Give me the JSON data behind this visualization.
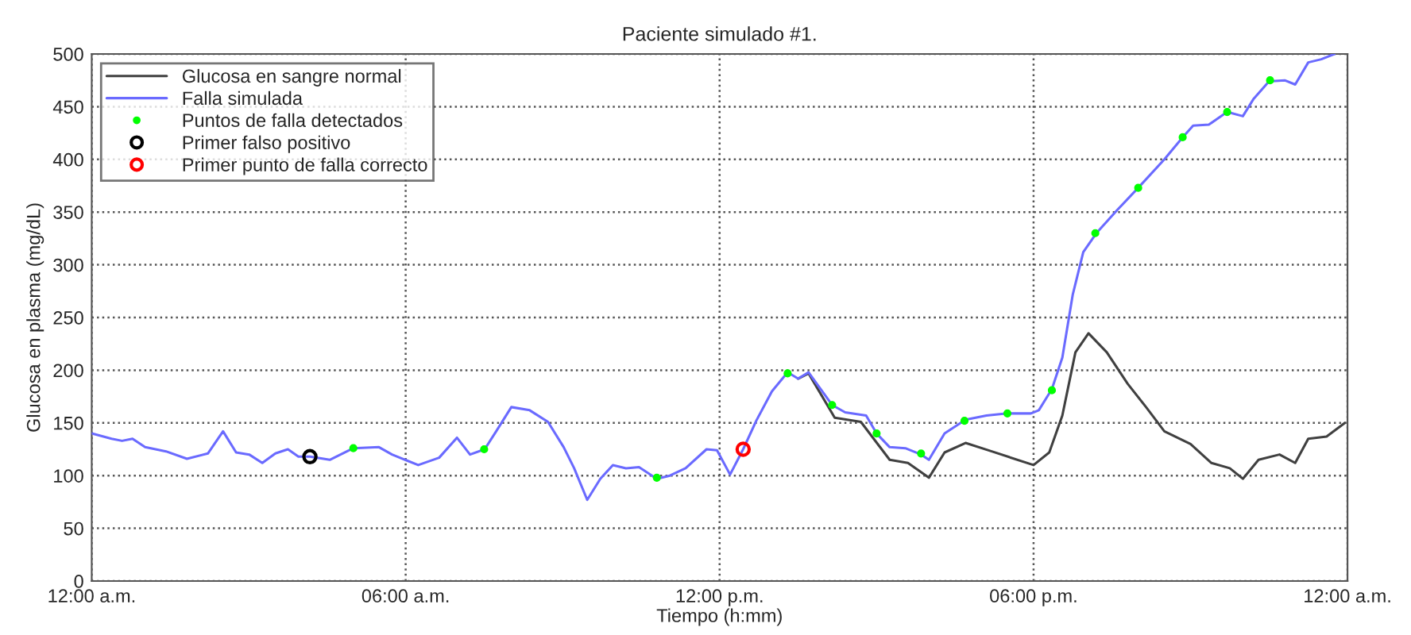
{
  "chart_data": {
    "type": "line",
    "title": "Paciente simulado #1.",
    "xlabel": "Tiempo (h:mm)",
    "ylabel": "Glucosa en plasma (mg/dL)",
    "xlim": [
      0,
      24
    ],
    "xticks": [
      {
        "value": 0,
        "label": "12:00 a.m."
      },
      {
        "value": 6,
        "label": "06:00 a.m."
      },
      {
        "value": 12,
        "label": "12:00 p.m."
      },
      {
        "value": 18,
        "label": "06:00 p.m."
      },
      {
        "value": 24,
        "label": "12:00 a.m."
      }
    ],
    "ylim": [
      0,
      500
    ],
    "yticks": [
      0,
      50,
      100,
      150,
      200,
      250,
      300,
      350,
      400,
      450,
      500
    ],
    "grid": true,
    "legend": "top left",
    "series": [
      {
        "name": "Glucosa en sangre normal",
        "color": "#404040",
        "x": [
          13.5,
          13.7,
          14.2,
          14.7,
          15.25,
          15.6,
          16.0,
          16.3,
          16.7,
          17.2,
          18.0,
          18.3,
          18.55,
          18.8,
          19.05,
          19.4,
          19.8,
          20.15,
          20.5,
          21.0,
          21.4,
          21.75,
          22.0,
          22.3,
          22.7,
          23.0,
          23.25,
          23.6,
          23.95
        ],
        "values": [
          192,
          197,
          155,
          151,
          115,
          112,
          98,
          122,
          131,
          123,
          110,
          122,
          157,
          217,
          235,
          217,
          187,
          165,
          142,
          130,
          112,
          107,
          97,
          115,
          120,
          112,
          135,
          137,
          150
        ]
      },
      {
        "name": "Falla simulada",
        "color": "#6a6aff",
        "x": [
          0,
          0.38,
          0.58,
          0.78,
          1.02,
          1.42,
          1.82,
          2.22,
          2.51,
          2.76,
          3.01,
          3.26,
          3.51,
          3.75,
          3.95,
          4.17,
          4.55,
          5.0,
          5.49,
          5.74,
          6.24,
          6.64,
          6.98,
          7.23,
          7.51,
          7.73,
          8.02,
          8.37,
          8.72,
          9.02,
          9.22,
          9.47,
          9.72,
          9.96,
          10.21,
          10.46,
          10.8,
          11.05,
          11.35,
          11.75,
          11.95,
          12.2,
          12.45,
          12.7,
          13.0,
          13.3,
          13.5,
          13.7,
          14.15,
          14.4,
          14.8,
          15.0,
          15.25,
          15.55,
          15.85,
          16.0,
          16.3,
          16.7,
          17.1,
          17.5,
          17.95,
          18.1,
          18.35,
          18.55,
          18.75,
          18.95,
          19.2,
          19.6,
          20.0,
          20.5,
          20.85,
          21.05,
          21.35,
          21.7,
          22.0,
          22.2,
          22.5,
          22.8,
          23.0,
          23.25,
          23.5,
          23.75
        ],
        "values": [
          140,
          135,
          133,
          135,
          127,
          123,
          116,
          121,
          142,
          122,
          120,
          112,
          121,
          125,
          118,
          118,
          115,
          126,
          127,
          120,
          110,
          117,
          136,
          120,
          125,
          142,
          165,
          162,
          151,
          127,
          107,
          77,
          97,
          110,
          107,
          108,
          97,
          100,
          107,
          125,
          124,
          101,
          125,
          152,
          180,
          198,
          192,
          198,
          167,
          160,
          157,
          140,
          127,
          126,
          120,
          115,
          140,
          153,
          157,
          159,
          159,
          162,
          182,
          212,
          272,
          312,
          330,
          352,
          373,
          400,
          421,
          432,
          433,
          445,
          441,
          457,
          474,
          475,
          471,
          492,
          495,
          500
        ]
      },
      {
        "name": "Puntos de falla detectados",
        "type": "scatter",
        "color": "#00ff00",
        "marker": "circle",
        "x": [
          5.0,
          7.5,
          10.8,
          13.3,
          14.15,
          15.0,
          15.85,
          16.68,
          17.5,
          18.35,
          19.18,
          20.0,
          20.85,
          21.7,
          22.52
        ],
        "values": [
          126,
          125,
          98,
          197,
          167,
          140,
          121,
          152,
          159,
          181,
          330,
          373,
          421,
          445,
          475
        ]
      },
      {
        "name": "Primer falso positivo",
        "type": "scatter",
        "color": "#000000",
        "marker": "circle",
        "x": [
          4.17
        ],
        "values": [
          118
        ]
      },
      {
        "name": "Primer punto de falla correcto",
        "type": "scatter",
        "color": "#ff0000",
        "marker": "circle",
        "x": [
          12.45
        ],
        "values": [
          125
        ]
      }
    ]
  }
}
